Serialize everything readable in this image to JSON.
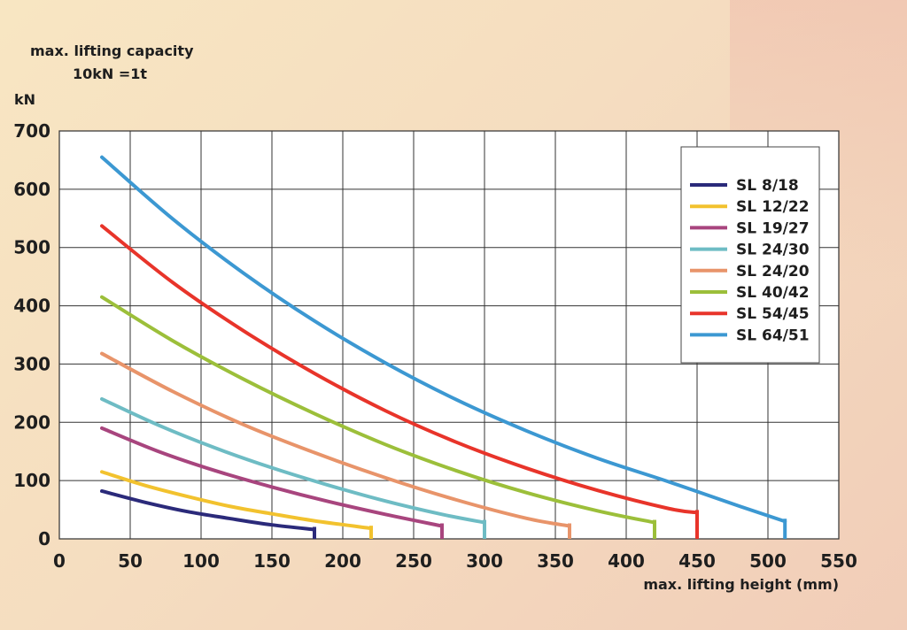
{
  "chart_data": {
    "type": "line",
    "ylabel_top": "max. lifting capacity",
    "ylabel_note": "10kN =1t",
    "yunit": "kN",
    "xlabel": "max. lifting height (mm)",
    "xlim": [
      0,
      550
    ],
    "ylim": [
      0,
      700
    ],
    "xticks": [
      0,
      50,
      100,
      150,
      200,
      250,
      300,
      350,
      400,
      450,
      500,
      550
    ],
    "yticks": [
      0,
      100,
      200,
      300,
      400,
      500,
      600,
      700
    ],
    "grid": true,
    "legend_position": "top-right",
    "series": [
      {
        "name": "SL 8/18",
        "color": "#2b2a7a",
        "x": [
          30,
          60,
          90,
          120,
          150,
          180
        ],
        "y": [
          82,
          63,
          47,
          35,
          24,
          16
        ]
      },
      {
        "name": "SL 12/22",
        "color": "#f2c22e",
        "x": [
          30,
          60,
          90,
          120,
          150,
          180,
          220
        ],
        "y": [
          115,
          92,
          73,
          56,
          43,
          31,
          18
        ]
      },
      {
        "name": "SL 19/27",
        "color": "#a8457e",
        "x": [
          30,
          70,
          110,
          150,
          190,
          230,
          270
        ],
        "y": [
          190,
          150,
          117,
          89,
          64,
          42,
          22
        ]
      },
      {
        "name": "SL 24/30",
        "color": "#6ebcc4",
        "x": [
          30,
          70,
          110,
          150,
          190,
          230,
          270,
          300
        ],
        "y": [
          240,
          195,
          156,
          122,
          92,
          65,
          42,
          28
        ]
      },
      {
        "name": "SL 24/20",
        "color": "#e8946a",
        "x": [
          30,
          80,
          130,
          180,
          230,
          280,
          330,
          360
        ],
        "y": [
          318,
          253,
          196,
          148,
          105,
          67,
          35,
          22
        ]
      },
      {
        "name": "SL 40/42",
        "color": "#9cbf3a",
        "x": [
          30,
          80,
          130,
          180,
          230,
          280,
          330,
          380,
          420
        ],
        "y": [
          415,
          340,
          274,
          215,
          162,
          117,
          79,
          48,
          28
        ]
      },
      {
        "name": "SL 54/45",
        "color": "#e8342a",
        "x": [
          30,
          80,
          130,
          180,
          230,
          280,
          330,
          380,
          430,
          450
        ],
        "y": [
          537,
          440,
          357,
          284,
          220,
          166,
          121,
          83,
          52,
          45
        ]
      },
      {
        "name": "SL 64/51",
        "color": "#3c98d2",
        "x": [
          30,
          80,
          130,
          180,
          230,
          280,
          330,
          380,
          430,
          480,
          512
        ],
        "y": [
          655,
          549,
          456,
          374,
          302,
          239,
          185,
          138,
          98,
          56,
          30
        ]
      }
    ]
  }
}
